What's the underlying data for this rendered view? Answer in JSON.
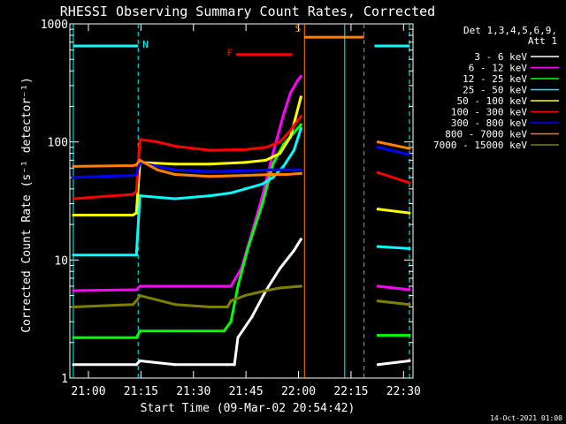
{
  "chart_data": {
    "type": "line",
    "title": "RHESSI Observing Summary Count Rates, Corrected",
    "xlabel": "Start Time (09-Mar-02 20:54:42)",
    "ylabel": "Corrected Count Rate (s⁻¹ detector⁻¹)",
    "footer_date": "14-Oct-2021 01:00",
    "y_scale": "log",
    "ylim": [
      1,
      1000
    ],
    "xlim_minutes": [
      0,
      98
    ],
    "x_ticks": [
      {
        "label": "21:00",
        "t": 5.3
      },
      {
        "label": "21:15",
        "t": 20.3
      },
      {
        "label": "21:30",
        "t": 35.3
      },
      {
        "label": "21:45",
        "t": 50.3
      },
      {
        "label": "22:00",
        "t": 65.3
      },
      {
        "label": "22:15",
        "t": 80.3
      },
      {
        "label": "22:30",
        "t": 95.3
      }
    ],
    "y_ticks": [
      {
        "label": "1",
        "v": 1
      },
      {
        "label": "10",
        "v": 10
      },
      {
        "label": "100",
        "v": 100
      },
      {
        "label": "1000",
        "v": 1000
      }
    ],
    "legend_header": [
      "Det 1,3,4,5,6,9,",
      "Att 1"
    ],
    "series": [
      {
        "name": "3 - 6 keV",
        "color": "#ffffff",
        "points": [
          [
            1,
            1.3
          ],
          [
            19,
            1.3
          ],
          [
            20,
            1.4
          ],
          [
            30,
            1.3
          ],
          [
            45,
            1.3
          ],
          [
            47,
            1.3
          ],
          [
            48,
            2.2
          ],
          [
            52,
            3.3
          ],
          [
            56,
            5.5
          ],
          [
            60,
            8.5
          ],
          [
            64,
            12
          ],
          [
            66,
            15
          ],
          [
            67,
            null
          ],
          [
            87,
            null
          ],
          [
            88,
            1.3
          ],
          [
            97,
            1.4
          ]
        ]
      },
      {
        "name": "6 - 12 keV",
        "color": "#ff00ff",
        "points": [
          [
            1,
            5.5
          ],
          [
            19,
            5.6
          ],
          [
            20,
            6
          ],
          [
            30,
            6
          ],
          [
            44,
            6
          ],
          [
            46,
            6
          ],
          [
            49,
            8.5
          ],
          [
            52,
            17
          ],
          [
            55,
            35
          ],
          [
            58,
            80
          ],
          [
            61,
            170
          ],
          [
            63,
            260
          ],
          [
            65,
            330
          ],
          [
            66,
            360
          ],
          [
            67,
            null
          ],
          [
            87,
            null
          ],
          [
            88,
            6
          ],
          [
            97,
            5.6
          ]
        ]
      },
      {
        "name": "12 - 25 keV",
        "color": "#00ff00",
        "points": [
          [
            1,
            2.2
          ],
          [
            19,
            2.2
          ],
          [
            20,
            2.5
          ],
          [
            30,
            2.5
          ],
          [
            44,
            2.5
          ],
          [
            46,
            3
          ],
          [
            48,
            6
          ],
          [
            51,
            13
          ],
          [
            55,
            30
          ],
          [
            58,
            65
          ],
          [
            61,
            95
          ],
          [
            64,
            120
          ],
          [
            66,
            140
          ],
          [
            67,
            null
          ],
          [
            87,
            null
          ],
          [
            88,
            2.3
          ],
          [
            97,
            2.3
          ]
        ]
      },
      {
        "name": "25 - 50 keV",
        "color": "#00ffff",
        "points": [
          [
            1,
            11
          ],
          [
            18,
            11
          ],
          [
            19,
            11
          ],
          [
            20,
            35
          ],
          [
            30,
            33
          ],
          [
            40,
            35
          ],
          [
            46,
            37
          ],
          [
            50,
            40
          ],
          [
            55,
            44
          ],
          [
            58,
            50
          ],
          [
            61,
            62
          ],
          [
            64,
            85
          ],
          [
            66,
            130
          ],
          [
            67,
            null
          ],
          [
            87,
            null
          ],
          [
            88,
            13
          ],
          [
            97,
            12.5
          ]
        ]
      },
      {
        "name": "50 - 100 keV",
        "color": "#ffff00",
        "points": [
          [
            1,
            24
          ],
          [
            18,
            24
          ],
          [
            19,
            25
          ],
          [
            20,
            67
          ],
          [
            30,
            65
          ],
          [
            40,
            65
          ],
          [
            50,
            67
          ],
          [
            56,
            70
          ],
          [
            60,
            80
          ],
          [
            63,
            110
          ],
          [
            66,
            240
          ],
          [
            67,
            null
          ],
          [
            87,
            null
          ],
          [
            88,
            27
          ],
          [
            97,
            25
          ]
        ]
      },
      {
        "name": "100 - 300 keV",
        "color": "#ff0000",
        "points": [
          [
            1,
            33
          ],
          [
            18,
            36
          ],
          [
            19,
            38
          ],
          [
            20,
            105
          ],
          [
            25,
            100
          ],
          [
            30,
            92
          ],
          [
            40,
            85
          ],
          [
            50,
            86
          ],
          [
            56,
            90
          ],
          [
            60,
            100
          ],
          [
            63,
            125
          ],
          [
            66,
            165
          ],
          [
            67,
            null
          ],
          [
            87,
            null
          ],
          [
            88,
            55
          ],
          [
            97,
            45
          ]
        ]
      },
      {
        "name": "300 - 800 keV",
        "color": "#0000ff",
        "points": [
          [
            1,
            50
          ],
          [
            18,
            52
          ],
          [
            19,
            53
          ],
          [
            20,
            67
          ],
          [
            25,
            62
          ],
          [
            30,
            58
          ],
          [
            40,
            56
          ],
          [
            50,
            57
          ],
          [
            58,
            58
          ],
          [
            62,
            58
          ],
          [
            66,
            58
          ],
          [
            67,
            null
          ],
          [
            87,
            null
          ],
          [
            88,
            90
          ],
          [
            97,
            78
          ]
        ]
      },
      {
        "name": "800 - 7000 keV",
        "color": "#ff8000",
        "points": [
          [
            1,
            62
          ],
          [
            18,
            63
          ],
          [
            19,
            64
          ],
          [
            20,
            70
          ],
          [
            25,
            58
          ],
          [
            30,
            53
          ],
          [
            40,
            51
          ],
          [
            50,
            52
          ],
          [
            58,
            53
          ],
          [
            62,
            53
          ],
          [
            66,
            54
          ],
          [
            67,
            null
          ],
          [
            87,
            null
          ],
          [
            88,
            100
          ],
          [
            97,
            88
          ]
        ]
      },
      {
        "name": "7000 - 15000 keV",
        "color": "#808000",
        "points": [
          [
            1,
            4
          ],
          [
            18,
            4.2
          ],
          [
            19,
            4.5
          ],
          [
            20,
            5
          ],
          [
            30,
            4.2
          ],
          [
            40,
            4
          ],
          [
            45,
            4
          ],
          [
            46,
            4.5
          ],
          [
            50,
            5
          ],
          [
            56,
            5.5
          ],
          [
            60,
            5.8
          ],
          [
            66,
            6
          ],
          [
            67,
            null
          ],
          [
            87,
            null
          ],
          [
            88,
            4.5
          ],
          [
            97,
            4.2
          ]
        ]
      }
    ],
    "annotations": [
      {
        "type": "bar",
        "label": "N",
        "color": "#00ffff",
        "t0": 1,
        "t1": 19.5,
        "v": 650
      },
      {
        "type": "bar",
        "label": "",
        "color": "#00ffff",
        "t0": 87,
        "t1": 97,
        "v": 650
      },
      {
        "type": "bar",
        "label": "F",
        "color": "#ff0000",
        "t0": 47.5,
        "t1": 63.5,
        "v": 550
      },
      {
        "type": "bar",
        "label": "S",
        "color": "#ff8000",
        "t0": 67,
        "t1": 84,
        "v": 770
      },
      {
        "type": "vline",
        "color": "#00ffff",
        "t": 1,
        "style": "solid"
      },
      {
        "type": "vline",
        "color": "#00ffff",
        "t": 19.5,
        "style": "dashed"
      },
      {
        "type": "vline",
        "color": "#00ffff",
        "t": 78.5,
        "style": "solid"
      },
      {
        "type": "vline",
        "color": "#00ffff",
        "t": 97,
        "style": "dashed"
      },
      {
        "type": "vline",
        "color": "#ff8000",
        "t": 67,
        "style": "solid"
      },
      {
        "type": "vline",
        "color": "#ff8000",
        "t": 84,
        "style": "dashed"
      }
    ]
  }
}
